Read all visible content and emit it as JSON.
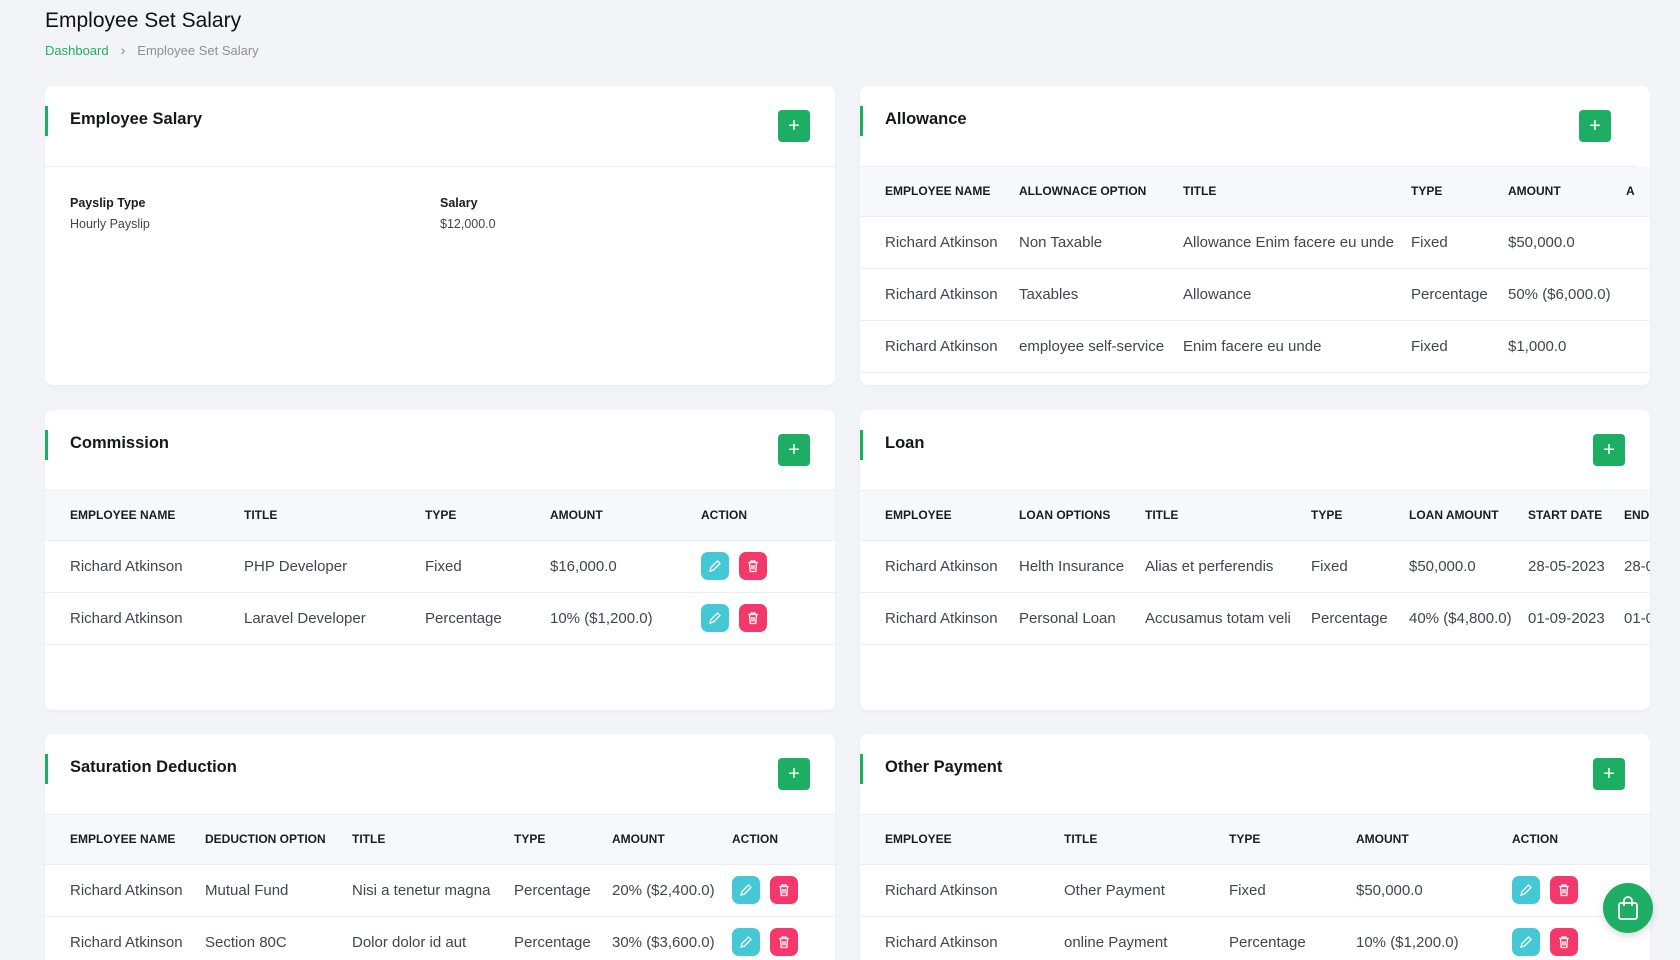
{
  "page": {
    "title": "Employee Set Salary"
  },
  "breadcrumb": {
    "home": "Dashboard",
    "current": "Employee Set Salary"
  },
  "colors": {
    "accent": "#1eae63",
    "edit": "#45c8d6",
    "delete": "#f5386a"
  },
  "employee_salary": {
    "title": "Employee Salary",
    "payslip_type_label": "Payslip Type",
    "payslip_type": "Hourly Payslip",
    "salary_label": "Salary",
    "salary": "$12,000.0"
  },
  "allowance": {
    "title": "Allowance",
    "columns": [
      "Employee Name",
      "Allownace Option",
      "Title",
      "Type",
      "Amount",
      "A"
    ],
    "rows": [
      [
        "Richard Atkinson",
        "Non Taxable",
        "Allowance Enim facere eu unde",
        "Fixed",
        "$50,000.0",
        ""
      ],
      [
        "Richard Atkinson",
        "Taxables",
        "Allowance",
        "Percentage",
        "50% ($6,000.0)",
        ""
      ],
      [
        "Richard Atkinson",
        "employee self-service",
        "Enim facere eu unde",
        "Fixed",
        "$1,000.0",
        ""
      ]
    ]
  },
  "commission": {
    "title": "Commission",
    "columns": [
      "Employee Name",
      "Title",
      "Type",
      "Amount",
      "Action"
    ],
    "rows": [
      [
        "Richard Atkinson",
        "PHP Developer",
        "Fixed",
        "$16,000.0"
      ],
      [
        "Richard Atkinson",
        "Laravel Developer",
        "Percentage",
        "10% ($1,200.0)"
      ]
    ]
  },
  "loan": {
    "title": "Loan",
    "columns": [
      "Employee",
      "Loan Options",
      "Title",
      "Type",
      "Loan Amount",
      "Start Date",
      "End"
    ],
    "rows": [
      [
        "Richard Atkinson",
        "Helth Insurance",
        "Alias et perferendis",
        "Fixed",
        "$50,000.0",
        "28-05-2023",
        "28-0"
      ],
      [
        "Richard Atkinson",
        "Personal Loan",
        "Accusamus totam veli",
        "Percentage",
        "40% ($4,800.0)",
        "01-09-2023",
        "01-0"
      ]
    ]
  },
  "saturation_deduction": {
    "title": "Saturation Deduction",
    "columns": [
      "Employee Name",
      "Deduction Option",
      "Title",
      "Type",
      "Amount",
      "Action"
    ],
    "rows": [
      [
        "Richard Atkinson",
        "Mutual Fund",
        "Nisi a tenetur magna",
        "Percentage",
        "20% ($2,400.0)"
      ],
      [
        "Richard Atkinson",
        "Section 80C",
        "Dolor dolor id aut",
        "Percentage",
        "30% ($3,600.0)"
      ]
    ]
  },
  "other_payment": {
    "title": "Other Payment",
    "columns": [
      "Employee",
      "Title",
      "Type",
      "Amount",
      "Action"
    ],
    "rows": [
      [
        "Richard Atkinson",
        "Other Payment",
        "Fixed",
        "$50,000.0"
      ],
      [
        "Richard Atkinson",
        "online Payment",
        "Percentage",
        "10% ($1,200.0)"
      ]
    ]
  },
  "icons": {
    "add": "plus-icon",
    "edit": "pencil-icon",
    "delete": "trash-icon",
    "fab": "shopping-bag-icon"
  }
}
